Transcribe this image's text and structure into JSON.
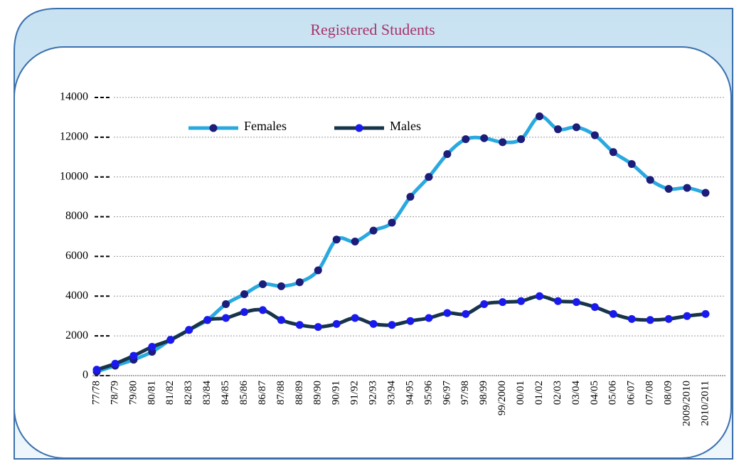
{
  "chart_data": {
    "type": "line",
    "title": "Registered Students",
    "categories": [
      "77/78",
      "78/79",
      "79/80",
      "80/81",
      "81/82",
      "82/83",
      "83/84",
      "84/85",
      "85/86",
      "86/87",
      "87/88",
      "88/89",
      "89/90",
      "90/91",
      "91/92",
      "92/93",
      "93/94",
      "94/95",
      "95/96",
      "96/97",
      "97/98",
      "98/99",
      "99/2000",
      "00/01",
      "01/02",
      "02/03",
      "03/04",
      "04/05",
      "05/06",
      "06/07",
      "07/08",
      "08/09",
      "2009/2010",
      "2010/2011"
    ],
    "series": [
      {
        "name": "Females",
        "color": "#29a9df",
        "marker_color": "#1c1c7a",
        "values": [
          200,
          500,
          800,
          1200,
          1800,
          2300,
          2800,
          3600,
          4100,
          4600,
          4500,
          4700,
          5300,
          6850,
          6750,
          7300,
          7700,
          9000,
          10000,
          11150,
          11900,
          11950,
          11750,
          11900,
          13050,
          12400,
          12500,
          12100,
          11250,
          10650,
          9850,
          9400,
          9450,
          9200
        ]
      },
      {
        "name": "Males",
        "color": "#17344a",
        "marker_color": "#1a1aee",
        "values": [
          300,
          600,
          1000,
          1450,
          1800,
          2300,
          2800,
          2900,
          3200,
          3300,
          2800,
          2550,
          2450,
          2600,
          2900,
          2600,
          2550,
          2750,
          2900,
          3150,
          3100,
          3600,
          3700,
          3750,
          4000,
          3750,
          3700,
          3450,
          3100,
          2850,
          2800,
          2850,
          3000,
          3100
        ]
      }
    ],
    "ylim": [
      0,
      14000
    ],
    "yticks": [
      0,
      2000,
      4000,
      6000,
      8000,
      10000,
      12000,
      14000
    ],
    "grid": true
  }
}
